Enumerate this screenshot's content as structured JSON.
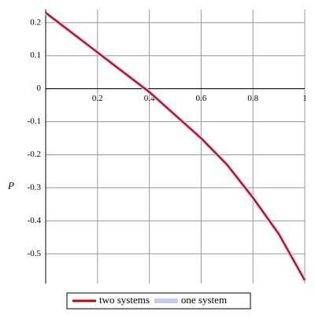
{
  "chart_data": {
    "type": "line",
    "y_label": "P",
    "x": [
      0,
      0.1,
      0.2,
      0.3,
      0.4,
      0.5,
      0.6,
      0.7,
      0.8,
      0.9,
      1
    ],
    "series": [
      {
        "name": "one system",
        "color": "#c8c8f0",
        "values": [
          0.23,
          0.17,
          0.11,
          0.05,
          -0.01,
          -0.08,
          -0.15,
          -0.23,
          -0.33,
          -0.44,
          -0.58
        ]
      },
      {
        "name": "two systems",
        "color": "#c00000",
        "values": [
          0.23,
          0.17,
          0.11,
          0.05,
          -0.01,
          -0.08,
          -0.15,
          -0.23,
          -0.33,
          -0.44,
          -0.58
        ]
      }
    ],
    "xlim": [
      0,
      1
    ],
    "ylim": [
      -0.59,
      0.24
    ],
    "xticks": [
      0.2,
      0.4,
      0.6,
      0.8,
      1
    ],
    "yticks": [
      0.2,
      0.1,
      0,
      -0.1,
      -0.2,
      -0.3,
      -0.4,
      -0.5
    ],
    "grid": true,
    "legend": "bottom"
  }
}
